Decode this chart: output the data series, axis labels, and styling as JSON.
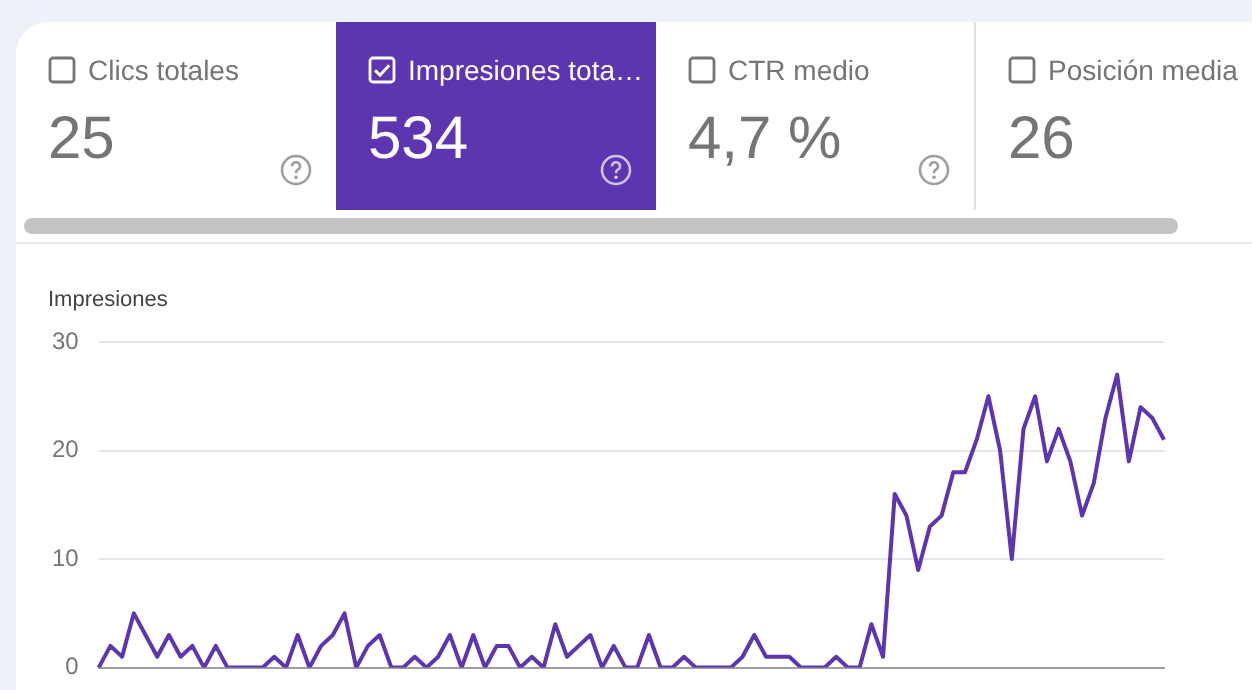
{
  "chart_data": {
    "type": "line",
    "ylabel": "Impresiones",
    "annotations": [
      "Clics totales",
      "25",
      "Impresiones tota…",
      "534",
      "CTR medio",
      "4,7 %",
      "Posición media",
      "26"
    ],
    "categories": [
      null,
      null,
      null,
      null,
      null,
      null,
      null,
      null,
      null,
      null,
      null,
      null,
      null,
      null,
      null,
      null,
      null,
      null,
      null,
      null,
      null,
      null,
      null,
      null,
      null,
      null,
      null,
      null,
      null,
      null,
      null,
      null,
      null,
      null,
      null,
      null,
      null,
      null,
      null,
      null,
      null,
      null,
      null,
      null,
      null,
      null,
      null,
      null,
      null,
      null,
      null,
      null,
      null,
      null,
      null,
      null,
      null,
      null,
      null,
      null,
      null,
      null,
      null,
      null,
      null,
      null,
      null,
      null,
      null,
      null,
      null,
      null,
      null,
      null,
      null,
      null,
      null,
      null,
      null,
      null,
      null,
      null,
      null,
      null,
      null,
      null,
      null,
      null,
      null,
      null,
      null,
      null
    ],
    "series": [
      {
        "color": "#5e35b1",
        "values": [
          0,
          2,
          1,
          5,
          3,
          1,
          3,
          1,
          2,
          0,
          2,
          0,
          0,
          0,
          0,
          1,
          0,
          3,
          0,
          2,
          3,
          5,
          0,
          2,
          3,
          0,
          0,
          1,
          0,
          1,
          3,
          0,
          3,
          0,
          2,
          2,
          0,
          1,
          0,
          4,
          1,
          2,
          3,
          0,
          2,
          0,
          0,
          3,
          0,
          0,
          1,
          0,
          0,
          0,
          0,
          1,
          3,
          1,
          1,
          1,
          0,
          0,
          0,
          1,
          0,
          0,
          4,
          1,
          16,
          14,
          9,
          13,
          14,
          18,
          18,
          21,
          25,
          20,
          10,
          22,
          25,
          19,
          22,
          19,
          14,
          17,
          23,
          27,
          19,
          24,
          23,
          21
        ]
      }
    ],
    "ylim": [
      0,
      30
    ],
    "yticks": [
      0,
      10,
      20,
      30
    ],
    "grid": "y",
    "legend": false,
    "marker": "none",
    "line_style": "solid",
    "tick_labels": "y"
  }
}
